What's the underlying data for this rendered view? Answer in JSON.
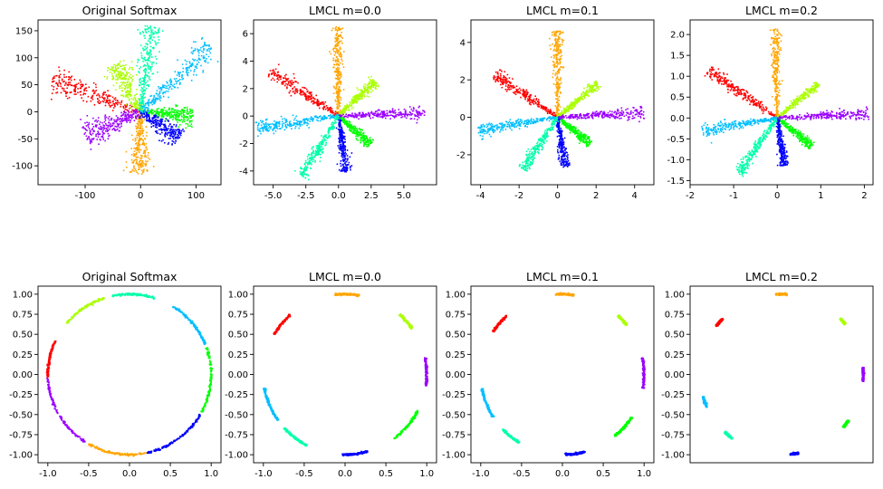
{
  "figure": {
    "layout": "2 rows x 4 columns of scatter plots"
  },
  "colors": {
    "classes": [
      "#ff0000",
      "#ffa500",
      "#aaff00",
      "#00ff00",
      "#9b00ff",
      "#0000ff",
      "#00bfff",
      "#00ffaa"
    ]
  },
  "chart_data": [
    {
      "type": "scatter",
      "title": "Original Softmax",
      "xlim": [
        -185,
        145
      ],
      "ylim": [
        -135,
        170
      ],
      "xticks": [
        "-100",
        "0",
        "100"
      ],
      "xtick_values": [
        -100,
        0,
        100
      ],
      "yticks": [
        "150",
        "100",
        "50",
        "0",
        "-50",
        "-100"
      ],
      "ytick_values": [
        150,
        100,
        50,
        0,
        -50,
        -100
      ],
      "clusters": [
        {
          "class": 0,
          "angle_deg": 160,
          "extent": 170,
          "spread": 9
        },
        {
          "class": 1,
          "angle_deg": 268,
          "extent": 115,
          "spread": 8
        },
        {
          "class": 2,
          "angle_deg": 118,
          "extent": 100,
          "spread": 9
        },
        {
          "class": 3,
          "angle_deg": -5,
          "extent": 95,
          "spread": 7
        },
        {
          "class": 4,
          "angle_deg": 203,
          "extent": 110,
          "spread": 10
        },
        {
          "class": 5,
          "angle_deg": -35,
          "extent": 85,
          "spread": 8
        },
        {
          "class": 6,
          "angle_deg": 43,
          "extent": 175,
          "spread": 9
        },
        {
          "class": 7,
          "angle_deg": 82,
          "extent": 160,
          "spread": 8
        }
      ]
    },
    {
      "type": "scatter",
      "title": "LMCL m=0.0",
      "xlim": [
        -6.5,
        7.5
      ],
      "ylim": [
        -5,
        7
      ],
      "xticks": [
        "-5.0",
        "-2.5",
        "0.0",
        "2.5",
        "5.0"
      ],
      "xtick_values": [
        -5,
        -2.5,
        0,
        2.5,
        5
      ],
      "yticks": [
        "6",
        "4",
        "2",
        "0",
        "-2",
        "-4"
      ],
      "ytick_values": [
        6,
        4,
        2,
        0,
        -2,
        -4
      ],
      "clusters": [
        {
          "class": 0,
          "angle_deg": 148,
          "extent": 6.2,
          "spread": 0.22
        },
        {
          "class": 1,
          "angle_deg": 91,
          "extent": 6.5,
          "spread": 0.2
        },
        {
          "class": 2,
          "angle_deg": 42,
          "extent": 3.8,
          "spread": 0.16
        },
        {
          "class": 3,
          "angle_deg": -40,
          "extent": 3.2,
          "spread": 0.16
        },
        {
          "class": 4,
          "angle_deg": 2,
          "extent": 6.6,
          "spread": 0.18
        },
        {
          "class": 5,
          "angle_deg": -82,
          "extent": 4.1,
          "spread": 0.16
        },
        {
          "class": 6,
          "angle_deg": 188,
          "extent": 6.4,
          "spread": 0.22
        },
        {
          "class": 7,
          "angle_deg": 237,
          "extent": 5.2,
          "spread": 0.2
        }
      ]
    },
    {
      "type": "scatter",
      "title": "LMCL m=0.1",
      "xlim": [
        -4.5,
        5
      ],
      "ylim": [
        -3.6,
        5.2
      ],
      "xticks": [
        "-4",
        "-2",
        "0",
        "2",
        "4"
      ],
      "xtick_values": [
        -4,
        -2,
        0,
        2,
        4
      ],
      "yticks": [
        "4",
        "2",
        "0",
        "-2"
      ],
      "ytick_values": [
        4,
        2,
        0,
        -2
      ],
      "clusters": [
        {
          "class": 0,
          "angle_deg": 145,
          "extent": 4.0,
          "spread": 0.13
        },
        {
          "class": 1,
          "angle_deg": 90,
          "extent": 4.6,
          "spread": 0.12
        },
        {
          "class": 2,
          "angle_deg": 41,
          "extent": 2.8,
          "spread": 0.1
        },
        {
          "class": 3,
          "angle_deg": -40,
          "extent": 2.2,
          "spread": 0.1
        },
        {
          "class": 4,
          "angle_deg": 3,
          "extent": 4.5,
          "spread": 0.12
        },
        {
          "class": 5,
          "angle_deg": -82,
          "extent": 2.7,
          "spread": 0.1
        },
        {
          "class": 6,
          "angle_deg": 190,
          "extent": 4.2,
          "spread": 0.14
        },
        {
          "class": 7,
          "angle_deg": 237,
          "extent": 3.3,
          "spread": 0.12
        }
      ]
    },
    {
      "type": "scatter",
      "title": "LMCL m=0.2",
      "xlim": [
        -2,
        2.2
      ],
      "ylim": [
        -1.6,
        2.35
      ],
      "xticks": [
        "-2",
        "-1",
        "0",
        "1",
        "2"
      ],
      "xtick_values": [
        -2,
        -1,
        0,
        1,
        2
      ],
      "yticks": [
        "2.0",
        "1.5",
        "1.0",
        "0.5",
        "0.0",
        "-0.5",
        "-1.0",
        "-1.5"
      ],
      "ytick_values": [
        2,
        1.5,
        1,
        0.5,
        0,
        -0.5,
        -1,
        -1.5
      ],
      "clusters": [
        {
          "class": 0,
          "angle_deg": 144,
          "extent": 1.95,
          "spread": 0.06
        },
        {
          "class": 1,
          "angle_deg": 91,
          "extent": 2.15,
          "spread": 0.05
        },
        {
          "class": 2,
          "angle_deg": 41,
          "extent": 1.25,
          "spread": 0.04
        },
        {
          "class": 3,
          "angle_deg": -40,
          "extent": 1.05,
          "spread": 0.04
        },
        {
          "class": 4,
          "angle_deg": 3,
          "extent": 2.1,
          "spread": 0.05
        },
        {
          "class": 5,
          "angle_deg": -82,
          "extent": 1.15,
          "spread": 0.04
        },
        {
          "class": 6,
          "angle_deg": 190,
          "extent": 1.75,
          "spread": 0.06
        },
        {
          "class": 7,
          "angle_deg": 236,
          "extent": 1.6,
          "spread": 0.05
        }
      ]
    },
    {
      "type": "scatter",
      "title": "Original Softmax",
      "xlim": [
        -1.12,
        1.12
      ],
      "ylim": [
        -1.1,
        1.1
      ],
      "xticks": [
        "-1.0",
        "-0.5",
        "0.0",
        "0.5",
        "1.0"
      ],
      "xtick_values": [
        -1,
        -0.5,
        0,
        0.5,
        1
      ],
      "yticks": [
        "1.00",
        "0.75",
        "0.50",
        "0.25",
        "0.00",
        "-0.25",
        "-0.50",
        "-0.75",
        "-1.00"
      ],
      "ytick_values": [
        1,
        0.75,
        0.5,
        0.25,
        0,
        -0.25,
        -0.5,
        -0.75,
        -1
      ],
      "arcs": [
        {
          "class": 0,
          "start_deg": 155,
          "end_deg": 182
        },
        {
          "class": 1,
          "start_deg": 240,
          "end_deg": 282
        },
        {
          "class": 2,
          "start_deg": 108,
          "end_deg": 140
        },
        {
          "class": 3,
          "start_deg": -28,
          "end_deg": 20
        },
        {
          "class": 4,
          "start_deg": 183,
          "end_deg": 238
        },
        {
          "class": 5,
          "start_deg": -78,
          "end_deg": -30
        },
        {
          "class": 6,
          "start_deg": 22,
          "end_deg": 58
        },
        {
          "class": 7,
          "start_deg": 72,
          "end_deg": 102
        }
      ]
    },
    {
      "type": "scatter",
      "title": "LMCL m=0.0",
      "xlim": [
        -1.12,
        1.12
      ],
      "ylim": [
        -1.1,
        1.1
      ],
      "xticks": [
        "-1.0",
        "-0.5",
        "0.0",
        "0.5",
        "1.0"
      ],
      "xtick_values": [
        -1,
        -0.5,
        0,
        0.5,
        1
      ],
      "yticks": [
        "1.00",
        "0.75",
        "0.50",
        "0.25",
        "0.00",
        "-0.25",
        "-0.50",
        "-0.75",
        "-1.00"
      ],
      "ytick_values": [
        1,
        0.75,
        0.5,
        0.25,
        0,
        -0.25,
        -0.5,
        -0.75,
        -1
      ],
      "arcs": [
        {
          "class": 0,
          "start_deg": 132,
          "end_deg": 150
        },
        {
          "class": 1,
          "start_deg": 80,
          "end_deg": 97
        },
        {
          "class": 2,
          "start_deg": 35,
          "end_deg": 48
        },
        {
          "class": 3,
          "start_deg": -53,
          "end_deg": -27
        },
        {
          "class": 4,
          "start_deg": -8,
          "end_deg": 12
        },
        {
          "class": 5,
          "start_deg": -92,
          "end_deg": -74
        },
        {
          "class": 6,
          "start_deg": 190,
          "end_deg": 215
        },
        {
          "class": 7,
          "start_deg": 222,
          "end_deg": 242
        }
      ]
    },
    {
      "type": "scatter",
      "title": "LMCL m=0.1",
      "xlim": [
        -1.12,
        1.12
      ],
      "ylim": [
        -1.1,
        1.1
      ],
      "xticks": [
        "-1.0",
        "-0.5",
        "0.0",
        "0.5",
        "1.0"
      ],
      "xtick_values": [
        -1,
        -0.5,
        0,
        0.5,
        1
      ],
      "yticks": [
        "1.00",
        "0.75",
        "0.50",
        "0.25",
        "0.00",
        "-0.25",
        "-0.50",
        "-0.75",
        "-1.00"
      ],
      "ytick_values": [
        1,
        0.75,
        0.5,
        0.25,
        0,
        -0.25,
        -0.5,
        -0.75,
        -1
      ],
      "arcs": [
        {
          "class": 0,
          "start_deg": 133,
          "end_deg": 148
        },
        {
          "class": 1,
          "start_deg": 82,
          "end_deg": 95
        },
        {
          "class": 2,
          "start_deg": 38,
          "end_deg": 47
        },
        {
          "class": 3,
          "start_deg": -50,
          "end_deg": -32
        },
        {
          "class": 4,
          "start_deg": -10,
          "end_deg": 12
        },
        {
          "class": 5,
          "start_deg": -88,
          "end_deg": -74
        },
        {
          "class": 6,
          "start_deg": 190,
          "end_deg": 212
        },
        {
          "class": 7,
          "start_deg": 223,
          "end_deg": 238
        }
      ]
    },
    {
      "type": "scatter",
      "title": "LMCL m=0.2",
      "xlim": [
        -1.12,
        1.12
      ],
      "ylim": [
        -1.1,
        1.1
      ],
      "xticks": [],
      "xtick_values": [],
      "yticks": [
        "1.00",
        "0.75",
        "0.50",
        "0.25",
        "0.00",
        "-0.25",
        "-0.50",
        "-0.75",
        "-1.00"
      ],
      "ytick_values": [
        1,
        0.75,
        0.5,
        0.25,
        0,
        -0.25,
        -0.5,
        -0.75,
        -1
      ],
      "arcs": [
        {
          "class": 0,
          "start_deg": 136,
          "end_deg": 143
        },
        {
          "class": 1,
          "start_deg": 86,
          "end_deg": 94
        },
        {
          "class": 2,
          "start_deg": 39,
          "end_deg": 44
        },
        {
          "class": 3,
          "start_deg": -41,
          "end_deg": -35
        },
        {
          "class": 4,
          "start_deg": -5,
          "end_deg": 5
        },
        {
          "class": 5,
          "start_deg": -84,
          "end_deg": -78
        },
        {
          "class": 6,
          "start_deg": 196,
          "end_deg": 204
        },
        {
          "class": 7,
          "start_deg": 226,
          "end_deg": 233
        }
      ]
    }
  ]
}
